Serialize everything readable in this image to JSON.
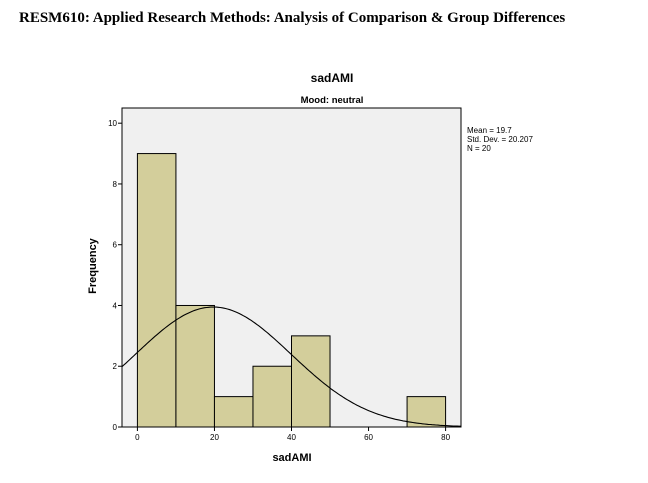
{
  "page": {
    "heading": "RESM610: Applied Research Methods: Analysis of Comparison & Group Differences"
  },
  "colors": {
    "plot_background": "#f0f0f0",
    "bar_fill": "#d3ce9b",
    "bar_stroke": "#000000",
    "curve": "#000000"
  },
  "chart_data": {
    "type": "bar",
    "title": "sadAMI",
    "subtitle": "Mood: neutral",
    "xlabel": "sadAMI",
    "ylabel": "Frequency",
    "xlim": [
      -4,
      84
    ],
    "ylim": [
      0,
      10.5
    ],
    "x_ticks": [
      0,
      20,
      40,
      60,
      80
    ],
    "y_ticks": [
      0,
      2,
      4,
      6,
      8,
      10
    ],
    "bins": [
      {
        "from": 0,
        "to": 10,
        "count": 9
      },
      {
        "from": 10,
        "to": 20,
        "count": 4
      },
      {
        "from": 20,
        "to": 30,
        "count": 1
      },
      {
        "from": 30,
        "to": 40,
        "count": 2
      },
      {
        "from": 40,
        "to": 50,
        "count": 3
      },
      {
        "from": 70,
        "to": 80,
        "count": 1
      }
    ],
    "normal_curve": {
      "mean": 19.7,
      "std": 20.207,
      "n": 20,
      "bin_width": 10
    },
    "stats_lines": [
      "Mean = 19.7",
      "Std. Dev. = 20.207",
      "N = 20"
    ]
  }
}
